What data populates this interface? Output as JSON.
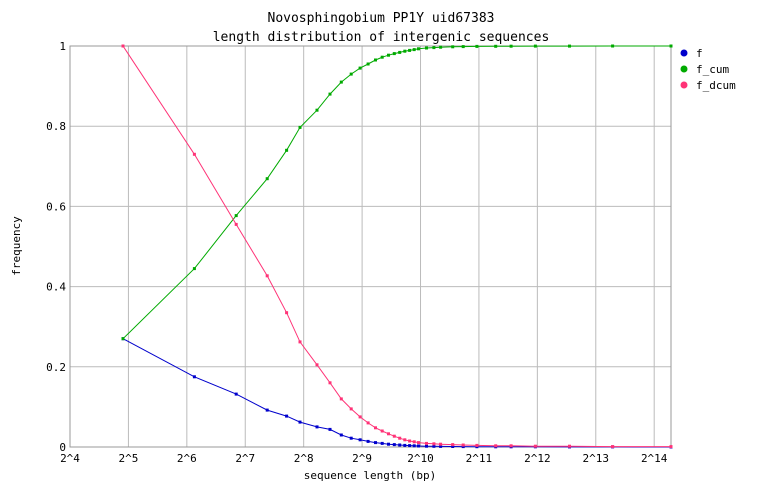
{
  "chart_data": {
    "type": "line",
    "title": [
      "Novosphingobium PP1Y uid67383",
      "length distribution of intergenic sequences"
    ],
    "xlabel": "sequence length (bp)",
    "ylabel": "frequency",
    "x_scale": "log2",
    "xlim": [
      16,
      20000
    ],
    "ylim": [
      0,
      1
    ],
    "x_ticks": [
      {
        "value": 16,
        "label": "2^4"
      },
      {
        "value": 32,
        "label": "2^5"
      },
      {
        "value": 64,
        "label": "2^6"
      },
      {
        "value": 128,
        "label": "2^7"
      },
      {
        "value": 256,
        "label": "2^8"
      },
      {
        "value": 512,
        "label": "2^9"
      },
      {
        "value": 1024,
        "label": "2^10"
      },
      {
        "value": 2048,
        "label": "2^11"
      },
      {
        "value": 4096,
        "label": "2^12"
      },
      {
        "value": 8192,
        "label": "2^13"
      },
      {
        "value": 16384,
        "label": "2^14"
      }
    ],
    "y_ticks": [
      {
        "value": 0,
        "label": "0"
      },
      {
        "value": 0.2,
        "label": "0.2"
      },
      {
        "value": 0.4,
        "label": "0.4"
      },
      {
        "value": 0.6,
        "label": "0.6"
      },
      {
        "value": 0.8,
        "label": "0.8"
      },
      {
        "value": 1,
        "label": "1"
      }
    ],
    "grid": true,
    "legend_position": "top-right",
    "series": [
      {
        "name": "f",
        "color": "#0000cc",
        "x": [
          30,
          70,
          115,
          166,
          209,
          245,
          300,
          350,
          400,
          450,
          500,
          550,
          600,
          650,
          700,
          750,
          800,
          850,
          900,
          950,
          1000,
          1100,
          1200,
          1300,
          1500,
          1700,
          2000,
          2500,
          3000,
          4000,
          6000,
          10000,
          20000
        ],
        "y": [
          0.27,
          0.175,
          0.132,
          0.092,
          0.077,
          0.062,
          0.05,
          0.044,
          0.03,
          0.022,
          0.018,
          0.014,
          0.011,
          0.009,
          0.007,
          0.006,
          0.005,
          0.004,
          0.0035,
          0.003,
          0.0025,
          0.002,
          0.0018,
          0.0015,
          0.0012,
          0.001,
          0.0008,
          0.0006,
          0.0005,
          0.0004,
          0.0003,
          0.0002,
          0.0001
        ]
      },
      {
        "name": "f_cum",
        "color": "#00aa00",
        "x": [
          30,
          70,
          115,
          166,
          209,
          245,
          300,
          350,
          400,
          450,
          500,
          550,
          600,
          650,
          700,
          750,
          800,
          850,
          900,
          950,
          1000,
          1100,
          1200,
          1300,
          1500,
          1700,
          2000,
          2500,
          3000,
          4000,
          6000,
          10000,
          20000
        ],
        "y": [
          0.27,
          0.445,
          0.577,
          0.669,
          0.74,
          0.797,
          0.84,
          0.88,
          0.91,
          0.93,
          0.945,
          0.955,
          0.965,
          0.972,
          0.977,
          0.981,
          0.984,
          0.987,
          0.989,
          0.991,
          0.993,
          0.995,
          0.996,
          0.997,
          0.998,
          0.9985,
          0.999,
          0.9993,
          0.9995,
          0.9997,
          0.9998,
          0.9999,
          1.0
        ]
      },
      {
        "name": "f_dcum",
        "color": "#ff3377",
        "x": [
          30,
          70,
          115,
          166,
          209,
          245,
          300,
          350,
          400,
          450,
          500,
          550,
          600,
          650,
          700,
          750,
          800,
          850,
          900,
          950,
          1000,
          1100,
          1200,
          1300,
          1500,
          1700,
          2000,
          2500,
          3000,
          4000,
          6000,
          10000,
          20000
        ],
        "y": [
          1.0,
          0.73,
          0.555,
          0.427,
          0.335,
          0.262,
          0.205,
          0.16,
          0.12,
          0.095,
          0.075,
          0.06,
          0.048,
          0.04,
          0.033,
          0.027,
          0.022,
          0.018,
          0.015,
          0.013,
          0.011,
          0.009,
          0.008,
          0.007,
          0.006,
          0.005,
          0.004,
          0.003,
          0.003,
          0.002,
          0.002,
          0.001,
          0.001
        ]
      }
    ]
  }
}
